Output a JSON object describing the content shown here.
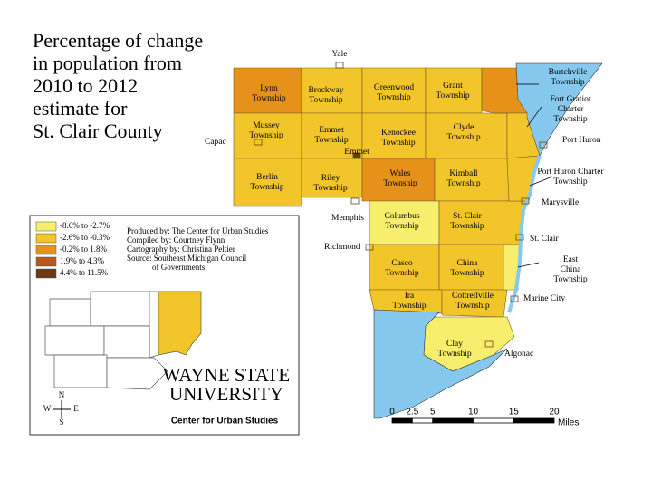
{
  "title": [
    "Percentage of change",
    "in population from",
    "2010 to 2012",
    "estimate for",
    "St. Clair County"
  ],
  "legend": [
    {
      "label": "-8.6% to -2.7%",
      "color": "#f7ee6e"
    },
    {
      "label": "-2.6% to -0.3%",
      "color": "#f2c52a"
    },
    {
      "label": "-0.2% to 1.8%",
      "color": "#e6921a"
    },
    {
      "label": "1.9% to 4.3%",
      "color": "#b65a1c"
    },
    {
      "label": "4.4% to 11.5%",
      "color": "#6e3912"
    }
  ],
  "credits": [
    "Produced by: The Center for Urban Studies",
    "Compiled by: Courtney Flynn",
    "Cartography by: Christina Peltier",
    "Source: Southeast Michigan Council",
    "of Governments"
  ],
  "logo": [
    "WAYNE STATE",
    "UNIVERSITY",
    "Center for Urban Studies"
  ],
  "compass": [
    "N",
    "W",
    "E",
    "S"
  ],
  "townships": [
    {
      "name": [
        "Lynn",
        "Township"
      ],
      "color": "#e6921a"
    },
    {
      "name": [
        "Brockway",
        "Township"
      ],
      "color": "#f2c52a"
    },
    {
      "name": [
        "Greenwood",
        "Township"
      ],
      "color": "#f2c52a"
    },
    {
      "name": [
        "Grant",
        "Township"
      ],
      "color": "#f2c52a"
    },
    {
      "name": [
        "Mussey",
        "Township"
      ],
      "color": "#f2c52a"
    },
    {
      "name": [
        "Emmet",
        "Township"
      ],
      "color": "#f2c52a"
    },
    {
      "name": [
        "Kenockee",
        "Township"
      ],
      "color": "#f2c52a"
    },
    {
      "name": [
        "Clyde",
        "Township"
      ],
      "color": "#f2c52a"
    },
    {
      "name": [
        "Berlin",
        "Township"
      ],
      "color": "#f2c52a"
    },
    {
      "name": [
        "Riley",
        "Township"
      ],
      "color": "#f2c52a"
    },
    {
      "name": [
        "Wales",
        "Township"
      ],
      "color": "#e6921a"
    },
    {
      "name": [
        "Kimball",
        "Township"
      ],
      "color": "#f2c52a"
    },
    {
      "name": [
        "Columbus",
        "Township"
      ],
      "color": "#f7ee6e"
    },
    {
      "name": [
        "St. Clair",
        "Township"
      ],
      "color": "#f2c52a"
    },
    {
      "name": [
        "Casco",
        "Township"
      ],
      "color": "#f2c52a"
    },
    {
      "name": [
        "China",
        "Township"
      ],
      "color": "#f2c52a"
    },
    {
      "name": [
        "Ira",
        "Township"
      ],
      "color": "#f2c52a"
    },
    {
      "name": [
        "Cottrellville",
        "Township"
      ],
      "color": "#f2c52a"
    },
    {
      "name": [
        "Clay",
        "Township"
      ],
      "color": "#f7ee6e"
    },
    {
      "name": [
        "Burtchville",
        "Township"
      ],
      "color": "#e6921a"
    },
    {
      "name": [
        "Fort Gratiot",
        "Charter",
        "Township"
      ],
      "color": "#f2c52a"
    },
    {
      "name": [
        "Port Huron Charter",
        "Township"
      ],
      "color": "#f2c52a"
    },
    {
      "name": [
        "East",
        "China",
        "Township"
      ],
      "color": "#f7ee6e"
    }
  ],
  "cities": [
    {
      "name": "Yale"
    },
    {
      "name": "Capac"
    },
    {
      "name": "Emmet",
      "color": "#6e3912"
    },
    {
      "name": "Memphis"
    },
    {
      "name": "Richmond"
    },
    {
      "name": "Port Huron"
    },
    {
      "name": "Marysville"
    },
    {
      "name": "St. Clair"
    },
    {
      "name": "Marine City"
    },
    {
      "name": "Algonac"
    }
  ],
  "scale_bar": {
    "ticks": [
      0,
      2.5,
      5,
      10,
      15,
      20
    ],
    "unit": "Miles"
  }
}
